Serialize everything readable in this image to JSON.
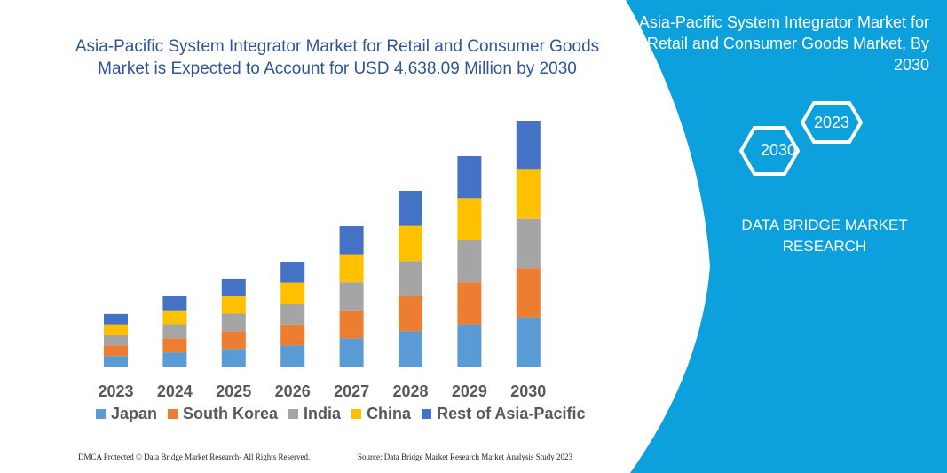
{
  "chart_data": {
    "type": "bar",
    "stacked": true,
    "title": "Asia-Pacific System Integrator Market for Retail and Consumer Goods Market is Expected to Account for USD 4,638.09 Million by 2030",
    "categories": [
      "2023",
      "2024",
      "2025",
      "2026",
      "2027",
      "2028",
      "2029",
      "2030"
    ],
    "series": [
      {
        "name": "Japan",
        "color": "#5b9bd5",
        "values": [
          198,
          265,
          332,
          395,
          529,
          663,
          794,
          928
        ]
      },
      {
        "name": "South Korea",
        "color": "#ed7d31",
        "values": [
          198,
          265,
          332,
          395,
          529,
          663,
          794,
          928
        ]
      },
      {
        "name": "India",
        "color": "#a5a5a5",
        "values": [
          198,
          265,
          332,
          395,
          529,
          663,
          794,
          928
        ]
      },
      {
        "name": "China",
        "color": "#ffc000",
        "values": [
          198,
          265,
          332,
          395,
          529,
          663,
          794,
          928
        ]
      },
      {
        "name": "Rest of Asia-Pacific",
        "color": "#4472c4",
        "values": [
          198,
          265,
          331,
          395,
          529,
          663,
          793,
          926
        ]
      }
    ],
    "ylim": [
      0,
      4638.09
    ],
    "grid": false,
    "legend_position": "bottom"
  },
  "side_panel": {
    "title": "Asia-Pacific System Integrator Market for Retail and Consumer Goods Market, By 2030",
    "hex_a": "2030",
    "hex_b": "2023",
    "brand": "DATA BRIDGE MARKET RESEARCH",
    "color": "#0ca0dc"
  },
  "footer": {
    "left": "DMCA Protected © Data Bridge Market Research-  All Rights Reserved.",
    "right": "Source: Data Bridge Market Research  Market Analysis Study 2023"
  }
}
